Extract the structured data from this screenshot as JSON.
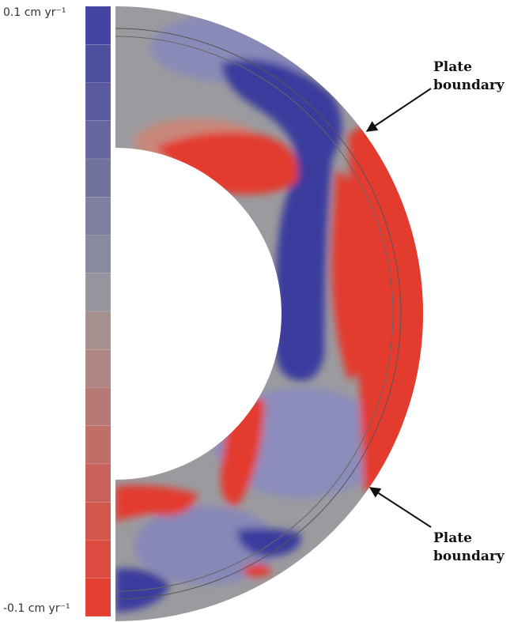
{
  "colorbar": {
    "top_label": "0.1 cm yr⁻¹",
    "bottom_label": "-0.1 cm yr⁻¹"
  },
  "annotations": [
    {
      "text": "Plate boundary"
    },
    {
      "text": "Plate boundary"
    }
  ]
}
